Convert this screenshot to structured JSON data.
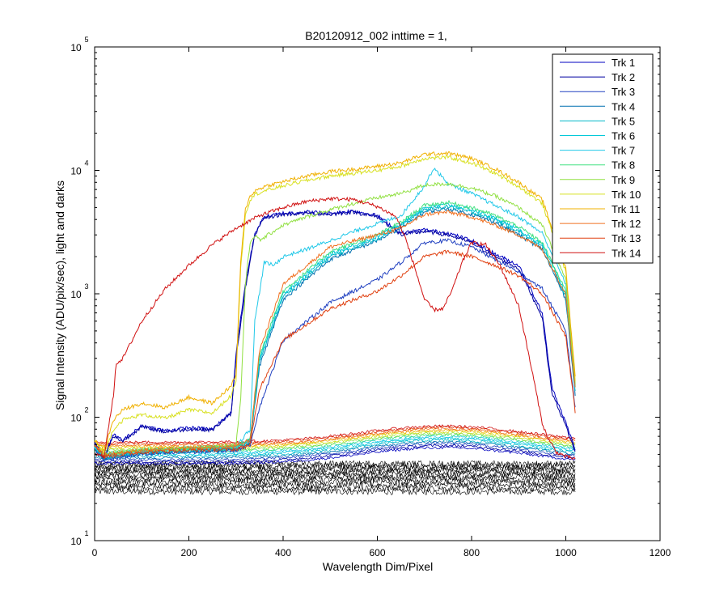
{
  "chart_data": {
    "type": "line",
    "title": "B20120912_002 inttime = 1,",
    "xlabel": "Wavelength Dim/Pixel",
    "ylabel": "Signal Intensity (ADU/pix/sec), light and darks",
    "xlim": [
      0,
      1200
    ],
    "ylim": [
      10,
      100000
    ],
    "yscale": "log",
    "x_ticks": [
      0,
      200,
      400,
      600,
      800,
      1000,
      1200
    ],
    "x_tick_labels": [
      "0",
      "200",
      "400",
      "600",
      "800",
      "1000",
      "1200"
    ],
    "y_ticks": [
      10,
      100,
      1000,
      10000,
      100000
    ],
    "y_tick_labels": [
      {
        "base": "10",
        "exp": "1"
      },
      {
        "base": "10",
        "exp": "2"
      },
      {
        "base": "10",
        "exp": "3"
      },
      {
        "base": "10",
        "exp": "4"
      },
      {
        "base": "10",
        "exp": "5"
      }
    ],
    "grid": false,
    "legend_position": "top-right",
    "series": [
      {
        "name": "Trk 1",
        "color": "#0000c0",
        "x": [
          0,
          20,
          40,
          60,
          100,
          150,
          200,
          250,
          290,
          300,
          320,
          340,
          360,
          400,
          450,
          500,
          550,
          600,
          620,
          650,
          700,
          750,
          800,
          850,
          900,
          950,
          970,
          1000,
          1020
        ],
        "values": [
          62,
          48,
          72,
          65,
          85,
          78,
          82,
          80,
          110,
          330,
          1200,
          3100,
          4200,
          4500,
          4600,
          4500,
          4700,
          4300,
          3800,
          3100,
          3300,
          3100,
          2700,
          2100,
          1700,
          700,
          180,
          90,
          55
        ]
      },
      {
        "name": "Trk 2",
        "color": "#0000a0",
        "x": [
          0,
          20,
          40,
          60,
          100,
          150,
          200,
          250,
          290,
          300,
          320,
          340,
          360,
          400,
          450,
          500,
          550,
          600,
          620,
          650,
          700,
          750,
          800,
          850,
          900,
          950,
          970,
          1000,
          1020
        ],
        "values": [
          60,
          47,
          70,
          64,
          84,
          76,
          80,
          79,
          108,
          300,
          1100,
          3000,
          4100,
          4400,
          4500,
          4400,
          4600,
          4200,
          3700,
          3000,
          3200,
          3000,
          2600,
          2000,
          1600,
          650,
          160,
          85,
          52
        ]
      },
      {
        "name": "Trk 3",
        "color": "#2040c0",
        "x": [
          0,
          20,
          60,
          100,
          200,
          300,
          330,
          350,
          400,
          500,
          600,
          650,
          700,
          750,
          800,
          850,
          900,
          950,
          1000,
          1020
        ],
        "values": [
          55,
          45,
          48,
          50,
          52,
          54,
          60,
          120,
          420,
          850,
          1300,
          1800,
          2600,
          2700,
          2400,
          1900,
          1500,
          1100,
          500,
          120
        ]
      },
      {
        "name": "Trk 4",
        "color": "#0070b0",
        "x": [
          0,
          20,
          60,
          100,
          200,
          300,
          330,
          350,
          400,
          500,
          600,
          650,
          700,
          750,
          800,
          850,
          900,
          950,
          1000,
          1020
        ],
        "values": [
          56,
          46,
          49,
          51,
          53,
          55,
          62,
          260,
          900,
          1900,
          2700,
          3400,
          4600,
          4900,
          4400,
          3800,
          3000,
          2300,
          900,
          150
        ]
      },
      {
        "name": "Trk 5",
        "color": "#00b8c8",
        "x": [
          0,
          20,
          60,
          100,
          200,
          300,
          330,
          350,
          400,
          500,
          600,
          650,
          700,
          750,
          800,
          850,
          900,
          950,
          1000,
          1020
        ],
        "values": [
          57,
          47,
          50,
          52,
          54,
          56,
          64,
          280,
          950,
          2000,
          2800,
          3600,
          4800,
          5100,
          4600,
          4000,
          3200,
          2400,
          950,
          160
        ]
      },
      {
        "name": "Trk 6",
        "color": "#00c8d8",
        "x": [
          0,
          20,
          60,
          100,
          200,
          300,
          330,
          350,
          400,
          500,
          600,
          650,
          700,
          750,
          800,
          850,
          900,
          950,
          1000,
          1020
        ],
        "values": [
          58,
          48,
          51,
          53,
          55,
          57,
          66,
          300,
          1000,
          2100,
          2900,
          3700,
          5000,
          5300,
          4800,
          4100,
          3300,
          2500,
          1000,
          170
        ]
      },
      {
        "name": "Trk 7",
        "color": "#20c8e8",
        "x": [
          0,
          20,
          60,
          100,
          200,
          300,
          330,
          340,
          360,
          380,
          400,
          450,
          500,
          550,
          600,
          650,
          700,
          720,
          750,
          800,
          850,
          900,
          950,
          1000,
          1020
        ],
        "values": [
          58,
          48,
          52,
          54,
          56,
          58,
          80,
          600,
          1800,
          1700,
          2000,
          2300,
          2700,
          3200,
          3700,
          4300,
          7500,
          10500,
          7800,
          6500,
          5200,
          4200,
          3100,
          1200,
          180
        ]
      },
      {
        "name": "Trk 8",
        "color": "#40e080",
        "x": [
          0,
          20,
          60,
          100,
          200,
          300,
          330,
          350,
          400,
          500,
          600,
          650,
          700,
          750,
          800,
          850,
          900,
          950,
          1000,
          1020
        ],
        "values": [
          59,
          49,
          52,
          54,
          56,
          58,
          67,
          320,
          1050,
          2200,
          3000,
          3800,
          5200,
          5500,
          5000,
          4300,
          3500,
          2600,
          1050,
          180
        ]
      },
      {
        "name": "Trk 9",
        "color": "#90e040",
        "x": [
          0,
          20,
          60,
          100,
          200,
          300,
          310,
          320,
          330,
          340,
          350,
          400,
          450,
          500,
          550,
          600,
          650,
          700,
          750,
          800,
          850,
          900,
          950,
          1000,
          1020
        ],
        "values": [
          60,
          50,
          52,
          54,
          56,
          60,
          140,
          1200,
          2600,
          3000,
          2700,
          3600,
          4200,
          4800,
          5400,
          6000,
          6500,
          7600,
          7800,
          7200,
          6200,
          5000,
          3600,
          1300,
          190
        ]
      },
      {
        "name": "Trk 10",
        "color": "#d8e020",
        "x": [
          0,
          20,
          40,
          60,
          100,
          150,
          200,
          250,
          290,
          300,
          310,
          320,
          330,
          340,
          360,
          400,
          450,
          500,
          550,
          600,
          650,
          700,
          750,
          800,
          850,
          900,
          950,
          1000,
          1020
        ],
        "values": [
          64,
          52,
          80,
          95,
          105,
          98,
          115,
          108,
          150,
          200,
          1600,
          4400,
          5800,
          6400,
          6800,
          7500,
          8300,
          9000,
          9500,
          10000,
          10800,
          12500,
          12800,
          11500,
          9500,
          7400,
          5400,
          1500,
          200
        ]
      },
      {
        "name": "Trk 11",
        "color": "#f0b000",
        "x": [
          0,
          20,
          40,
          60,
          100,
          150,
          200,
          250,
          290,
          300,
          310,
          320,
          330,
          340,
          360,
          400,
          450,
          500,
          550,
          600,
          650,
          700,
          750,
          800,
          850,
          900,
          950,
          1000,
          1020
        ],
        "values": [
          66,
          54,
          95,
          115,
          130,
          120,
          145,
          130,
          180,
          220,
          1800,
          4800,
          6200,
          6800,
          7400,
          8100,
          9000,
          9800,
          10200,
          10800,
          11500,
          13500,
          13800,
          12500,
          10300,
          8000,
          5800,
          1600,
          210
        ]
      },
      {
        "name": "Trk 12",
        "color": "#f07020",
        "x": [
          0,
          20,
          60,
          100,
          200,
          300,
          330,
          350,
          400,
          500,
          600,
          650,
          700,
          750,
          800,
          850,
          900,
          950,
          1000,
          1020
        ],
        "values": [
          60,
          50,
          52,
          54,
          56,
          58,
          66,
          350,
          1200,
          2400,
          3000,
          3400,
          4400,
          4600,
          4200,
          3600,
          3000,
          2300,
          1000,
          170
        ]
      },
      {
        "name": "Trk 13",
        "color": "#e04010",
        "x": [
          0,
          20,
          60,
          100,
          200,
          300,
          330,
          350,
          400,
          500,
          600,
          650,
          700,
          750,
          800,
          850,
          900,
          950,
          1000,
          1020
        ],
        "values": [
          60,
          48,
          50,
          52,
          54,
          55,
          60,
          170,
          420,
          760,
          1050,
          1400,
          2000,
          2200,
          2000,
          1700,
          1400,
          1000,
          450,
          110
        ]
      },
      {
        "name": "Trk 14",
        "color": "#d01010",
        "x": [
          0,
          20,
          40,
          45,
          60,
          100,
          150,
          200,
          250,
          300,
          350,
          400,
          450,
          500,
          550,
          600,
          640,
          660,
          680,
          700,
          720,
          740,
          760,
          780,
          800,
          830,
          860,
          900,
          930,
          950,
          960,
          980,
          1000,
          1020
        ],
        "values": [
          50,
          48,
          150,
          270,
          300,
          600,
          1100,
          1700,
          2500,
          3400,
          4300,
          5000,
          5600,
          5900,
          5800,
          5100,
          4200,
          2800,
          1600,
          900,
          740,
          760,
          1100,
          1800,
          2600,
          2500,
          1700,
          800,
          220,
          90,
          70,
          52,
          48,
          46
        ]
      }
    ],
    "dark_band": {
      "x_range": [
        0,
        1020
      ],
      "y_range": [
        25,
        42
      ],
      "color": "#000000"
    }
  }
}
